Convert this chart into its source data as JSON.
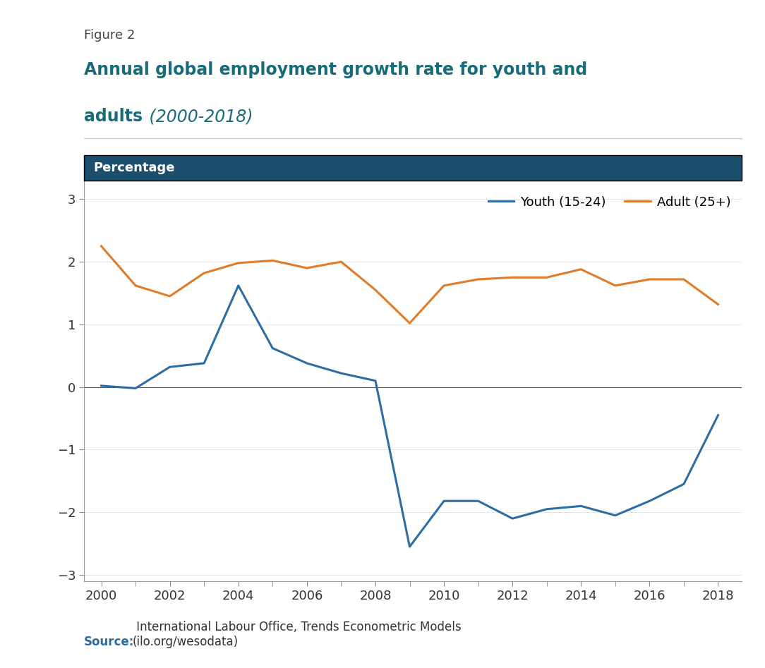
{
  "figure_label": "Figure 2",
  "title_line1": "Annual global employment growth rate for youth and",
  "title_line2_bold": "adults",
  "title_line2_italic": " (2000-2018)",
  "header_label": "Percentage",
  "header_bg_color": "#1c4f6e",
  "header_text_color": "#ffffff",
  "years": [
    2000,
    2001,
    2002,
    2003,
    2004,
    2005,
    2006,
    2007,
    2008,
    2009,
    2010,
    2011,
    2012,
    2013,
    2014,
    2015,
    2016,
    2017,
    2018
  ],
  "youth": [
    0.02,
    -0.02,
    0.32,
    0.38,
    1.62,
    0.62,
    0.38,
    0.22,
    0.1,
    -2.55,
    -1.82,
    -1.82,
    -2.1,
    -1.95,
    -1.9,
    -2.05,
    -1.82,
    -1.55,
    -0.45
  ],
  "adult": [
    2.25,
    1.62,
    1.45,
    1.82,
    1.98,
    2.02,
    1.9,
    2.0,
    1.55,
    1.02,
    1.62,
    1.72,
    1.75,
    1.75,
    1.88,
    1.62,
    1.72,
    1.72,
    1.32
  ],
  "youth_color": "#2e6da4",
  "adult_color": "#e07b2a",
  "youth_label": "Youth (15-24)",
  "adult_label": "Adult (25+)",
  "ylim": [
    -3.1,
    3.3
  ],
  "yticks": [
    -3,
    -2,
    -1,
    0,
    1,
    2,
    3
  ],
  "xlim": [
    1999.5,
    2018.7
  ],
  "xtick_years": [
    2000,
    2002,
    2004,
    2006,
    2008,
    2010,
    2012,
    2014,
    2016,
    2018
  ],
  "source_bold": "Source:",
  "source_text": " International Labour Office, Trends Econometric Models\n(ilo.org/wesodata)",
  "source_color": "#2e6da4",
  "title_color": "#1a6b7a",
  "figure_label_color": "#444444",
  "bg_color": "#ffffff",
  "line_width": 2.2,
  "tick_color": "#888888",
  "zero_line_color": "#555555",
  "grid_color": "#e0e0e0",
  "spine_color": "#999999"
}
